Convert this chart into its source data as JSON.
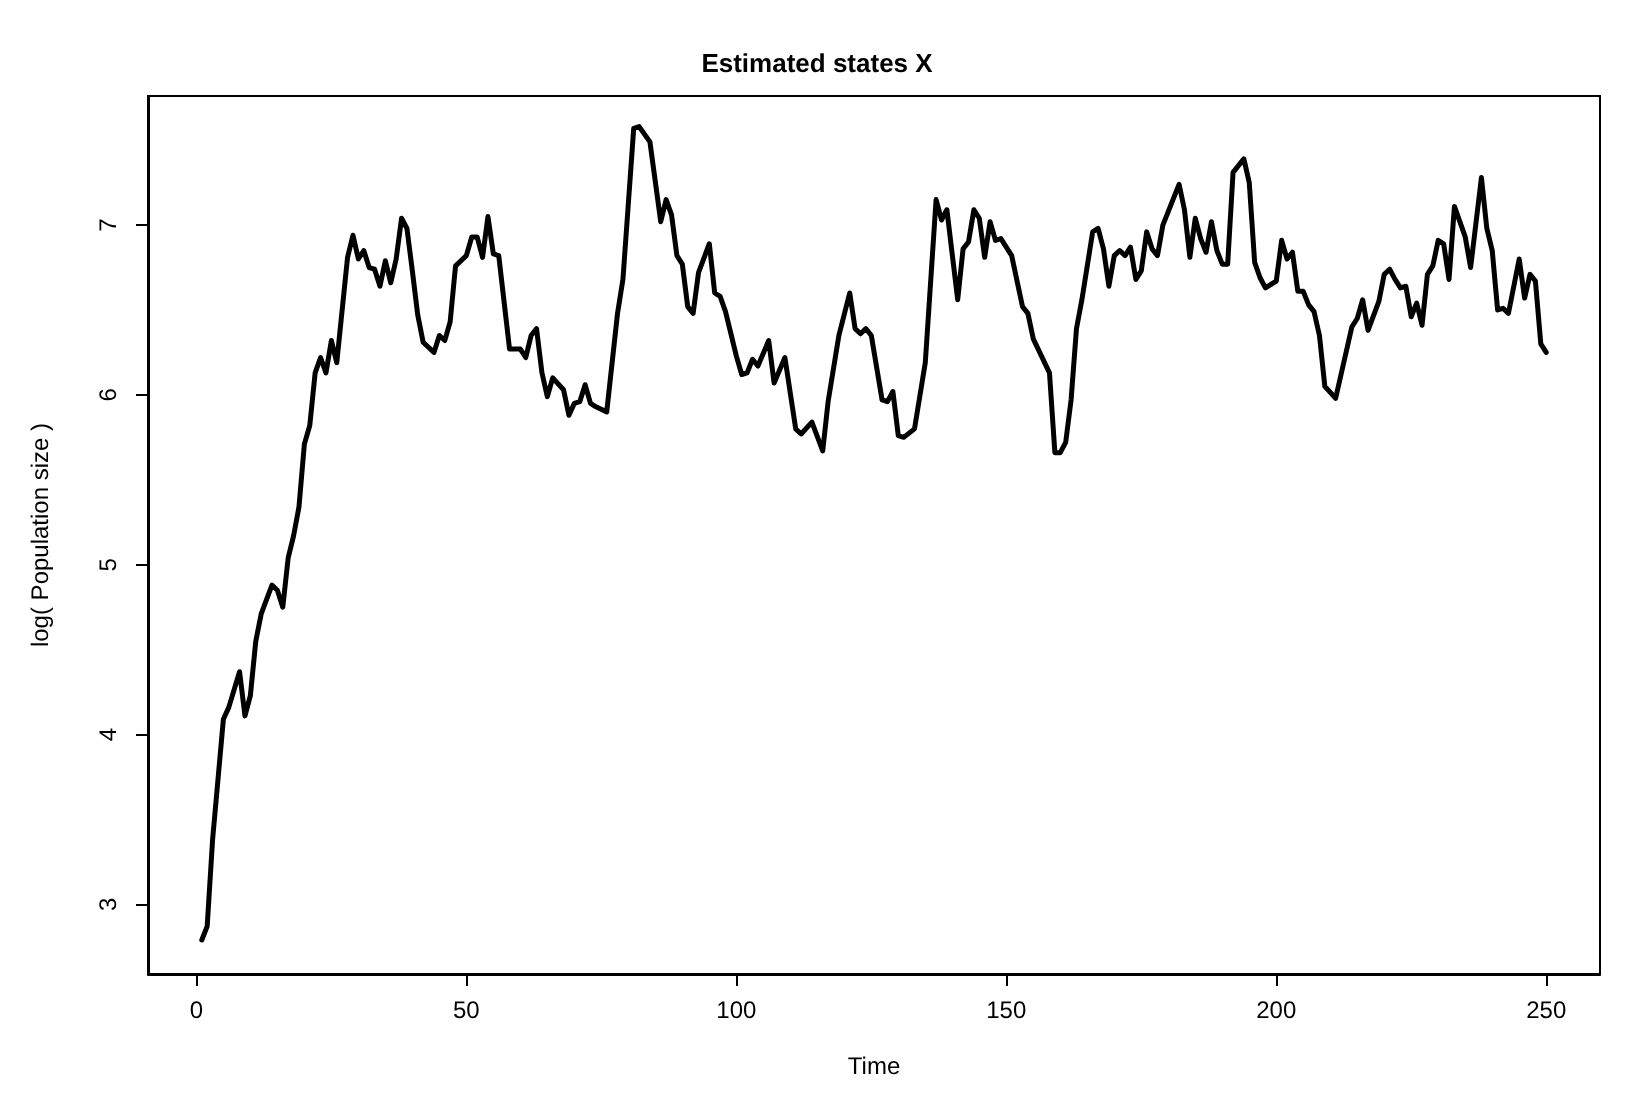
{
  "chart_data": {
    "type": "line",
    "title": "Estimated states X",
    "xlabel": "Time",
    "ylabel": "log( Population size )",
    "color": "#000000",
    "marker": "none",
    "line_style": "solid",
    "xlim": [
      -8.96,
      259.96
    ],
    "ylim": [
      2.59,
      7.76
    ],
    "xticks": [
      0,
      50,
      100,
      150,
      200,
      250
    ],
    "yticks": [
      3,
      4,
      5,
      6,
      7
    ],
    "x": [
      1,
      2,
      3,
      5,
      6,
      8,
      9,
      10,
      11,
      12,
      14,
      15,
      16,
      17,
      18,
      19,
      20,
      21,
      22,
      23,
      24,
      25,
      26,
      28,
      29,
      30,
      31,
      32,
      33,
      34,
      35,
      36,
      37,
      38,
      39,
      40,
      41,
      42,
      44,
      45,
      46,
      47,
      48,
      50,
      51,
      52,
      53,
      54,
      55,
      56,
      58,
      60,
      61,
      62,
      63,
      64,
      65,
      66,
      68,
      69,
      70,
      71,
      72,
      73,
      74,
      76,
      78,
      79,
      81,
      82,
      84,
      86,
      87,
      88,
      89,
      90,
      91,
      92,
      93,
      95,
      96,
      97,
      98,
      100,
      101,
      102,
      103,
      104,
      106,
      107,
      109,
      111,
      112,
      114,
      116,
      117,
      119,
      121,
      122,
      123,
      124,
      125,
      127,
      128,
      129,
      130,
      131,
      133,
      135,
      137,
      138,
      139,
      141,
      142,
      143,
      144,
      145,
      146,
      147,
      148,
      149,
      151,
      153,
      154,
      155,
      158,
      159,
      160,
      161,
      162,
      163,
      164,
      166,
      167,
      168,
      169,
      170,
      171,
      172,
      173,
      174,
      175,
      176,
      177,
      178,
      179,
      182,
      183,
      184,
      185,
      186,
      187,
      188,
      189,
      190,
      191,
      192,
      194,
      195,
      196,
      197,
      198,
      200,
      201,
      202,
      203,
      204,
      205,
      206,
      207,
      208,
      209,
      211,
      212,
      214,
      215,
      216,
      217,
      219,
      220,
      221,
      222,
      223,
      224,
      225,
      226,
      227,
      228,
      229,
      230,
      231,
      232,
      233,
      235,
      236,
      238,
      239,
      240,
      241,
      242,
      243,
      245,
      246,
      247,
      248,
      249,
      250
    ],
    "values": [
      2.79,
      2.87,
      3.38,
      4.09,
      4.16,
      4.37,
      4.11,
      4.23,
      4.55,
      4.71,
      4.88,
      4.85,
      4.75,
      5.04,
      5.17,
      5.34,
      5.71,
      5.82,
      6.13,
      6.22,
      6.13,
      6.32,
      6.19,
      6.81,
      6.94,
      6.8,
      6.85,
      6.75,
      6.74,
      6.64,
      6.79,
      6.66,
      6.8,
      7.04,
      6.98,
      6.73,
      6.47,
      6.31,
      6.25,
      6.35,
      6.32,
      6.43,
      6.76,
      6.82,
      6.93,
      6.93,
      6.81,
      7.05,
      6.83,
      6.82,
      6.27,
      6.27,
      6.22,
      6.35,
      6.39,
      6.13,
      5.99,
      6.1,
      6.03,
      5.88,
      5.95,
      5.96,
      6.06,
      5.95,
      5.93,
      5.9,
      6.48,
      6.68,
      7.57,
      7.58,
      7.49,
      7.02,
      7.15,
      7.06,
      6.82,
      6.77,
      6.52,
      6.48,
      6.72,
      6.89,
      6.6,
      6.58,
      6.49,
      6.23,
      6.12,
      6.13,
      6.21,
      6.17,
      6.32,
      6.07,
      6.22,
      5.8,
      5.77,
      5.84,
      5.67,
      5.96,
      6.35,
      6.6,
      6.39,
      6.36,
      6.39,
      6.35,
      5.97,
      5.96,
      6.02,
      5.76,
      5.75,
      5.8,
      6.19,
      7.15,
      7.03,
      7.09,
      6.56,
      6.86,
      6.9,
      7.09,
      7.04,
      6.81,
      7.02,
      6.91,
      6.92,
      6.82,
      6.52,
      6.48,
      6.33,
      6.13,
      5.66,
      5.66,
      5.72,
      5.97,
      6.39,
      6.56,
      6.96,
      6.98,
      6.86,
      6.64,
      6.82,
      6.85,
      6.82,
      6.87,
      6.68,
      6.73,
      6.96,
      6.86,
      6.82,
      7.0,
      7.24,
      7.09,
      6.81,
      7.04,
      6.92,
      6.84,
      7.02,
      6.85,
      6.77,
      6.77,
      7.31,
      7.39,
      7.25,
      6.78,
      6.69,
      6.63,
      6.67,
      6.91,
      6.8,
      6.84,
      6.61,
      6.61,
      6.53,
      6.49,
      6.35,
      6.05,
      5.98,
      6.12,
      6.4,
      6.45,
      6.56,
      6.38,
      6.55,
      6.71,
      6.74,
      6.68,
      6.63,
      6.64,
      6.46,
      6.54,
      6.41,
      6.71,
      6.76,
      6.91,
      6.89,
      6.68,
      7.11,
      6.93,
      6.75,
      7.28,
      6.98,
      6.85,
      6.5,
      6.51,
      6.48,
      6.8,
      6.57,
      6.71,
      6.67,
      6.3,
      6.25
    ]
  }
}
